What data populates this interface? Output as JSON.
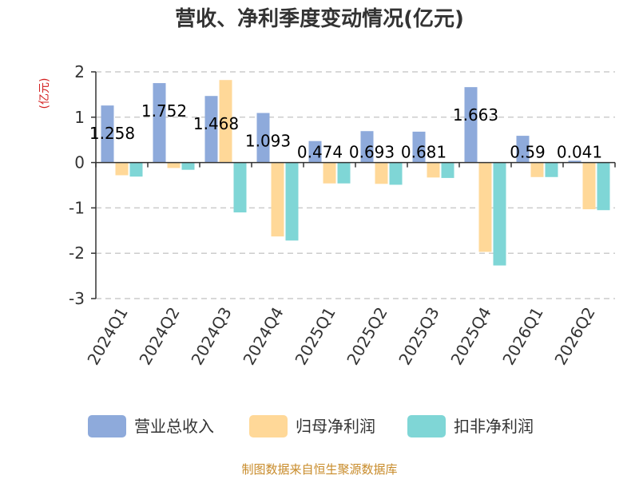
{
  "chart_data": {
    "type": "bar",
    "title": "营收、净利季度变动情况(亿元)",
    "ylabel": "(亿元)",
    "ylim": [
      -3,
      2
    ],
    "yticks": [
      2,
      1,
      0,
      -1,
      -2,
      -3
    ],
    "grid": true,
    "legend_position": "bottom",
    "categories": [
      "2024Q1",
      "2024Q2",
      "2024Q3",
      "2024Q4",
      "2025Q1",
      "2025Q2",
      "2025Q3",
      "2025Q4",
      "2026Q1",
      "2026Q2"
    ],
    "series": [
      {
        "name": "营业总收入",
        "color": "#8eaadb",
        "values": [
          1.258,
          1.752,
          1.468,
          1.093,
          0.474,
          0.693,
          0.681,
          1.663,
          0.59,
          0.041
        ]
      },
      {
        "name": "归母净利润",
        "color": "#ffd898",
        "values": [
          -0.28,
          -0.12,
          1.82,
          -1.63,
          -0.46,
          -0.47,
          -0.33,
          -1.97,
          -0.32,
          -1.03
        ]
      },
      {
        "name": "扣非净利润",
        "color": "#7fd6d6",
        "values": [
          -0.31,
          -0.16,
          -1.1,
          -1.72,
          -0.46,
          -0.49,
          -0.34,
          -2.27,
          -0.32,
          -1.05
        ]
      }
    ],
    "data_labels": [
      "1.258",
      "1.752",
      "1.468",
      "1.093",
      "0.474",
      "0.693",
      "0.681",
      "1.663",
      "0.59",
      "0.041"
    ]
  },
  "footer": "制图数据来自恒生聚源数据库"
}
